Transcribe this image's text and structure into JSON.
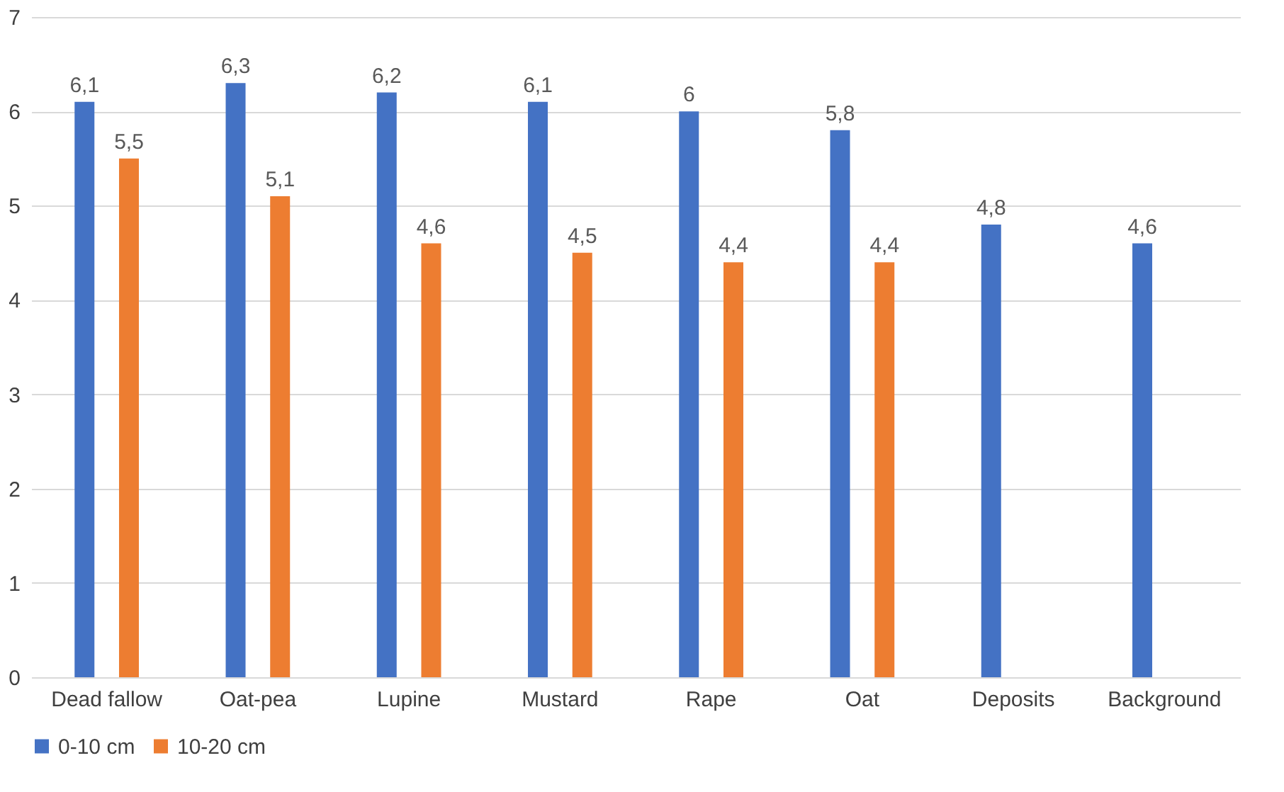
{
  "chart_data": {
    "type": "bar",
    "categories": [
      "Dead fallow",
      "Oat-pea",
      "Lupine",
      "Mustard",
      "Rape",
      "Oat",
      "Deposits",
      "Background"
    ],
    "series": [
      {
        "name": "0-10 cm",
        "color": "#4472c4",
        "values": [
          6.1,
          6.3,
          6.2,
          6.1,
          6,
          5.8,
          4.8,
          4.6
        ],
        "value_labels": [
          "6,1",
          "6,3",
          "6,2",
          "6,1",
          "6",
          "5,8",
          "4,8",
          "4,6"
        ]
      },
      {
        "name": "10-20 cm",
        "color": "#ed7d31",
        "values": [
          5.5,
          5.1,
          4.6,
          4.5,
          4.4,
          4.4,
          null,
          null
        ],
        "value_labels": [
          "5,5",
          "5,1",
          "4,6",
          "4,5",
          "4,4",
          "4,4",
          null,
          null
        ]
      }
    ],
    "ylim": [
      0,
      7
    ],
    "yticks": [
      0,
      1,
      2,
      3,
      4,
      5,
      6,
      7
    ],
    "grid": "y",
    "legend": "bottom"
  }
}
